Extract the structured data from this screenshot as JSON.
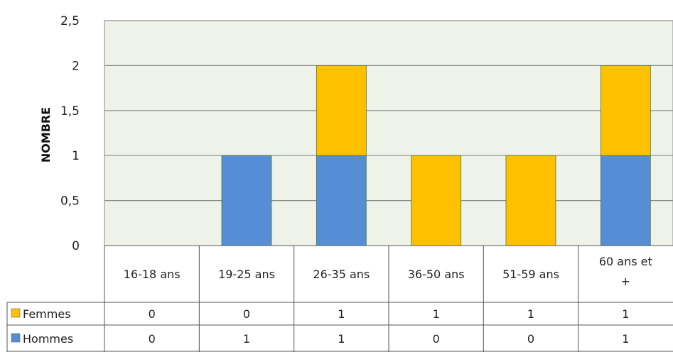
{
  "chart_data": {
    "type": "bar",
    "stacked": true,
    "title": "",
    "xlabel": "",
    "ylabel": "NOMBRE",
    "ylim": [
      0,
      2.5
    ],
    "yticks": [
      "0",
      "0,5",
      "1",
      "1,5",
      "2",
      "2,5"
    ],
    "categories": [
      "16-18 ans",
      "19-25 ans",
      "26-35 ans",
      "36-50 ans",
      "51-59 ans",
      "60 ans et +"
    ],
    "series": [
      {
        "name": "Hommes",
        "values": [
          0,
          1,
          1,
          0,
          0,
          1
        ],
        "color": "#558ED5"
      },
      {
        "name": "Femmes",
        "values": [
          0,
          0,
          1,
          1,
          1,
          1
        ],
        "color": "#FFC000"
      }
    ],
    "table_rows": [
      "Femmes",
      "Hommes"
    ],
    "plot_background": "#EEF2E8",
    "grid": true,
    "legend": "data-table"
  }
}
